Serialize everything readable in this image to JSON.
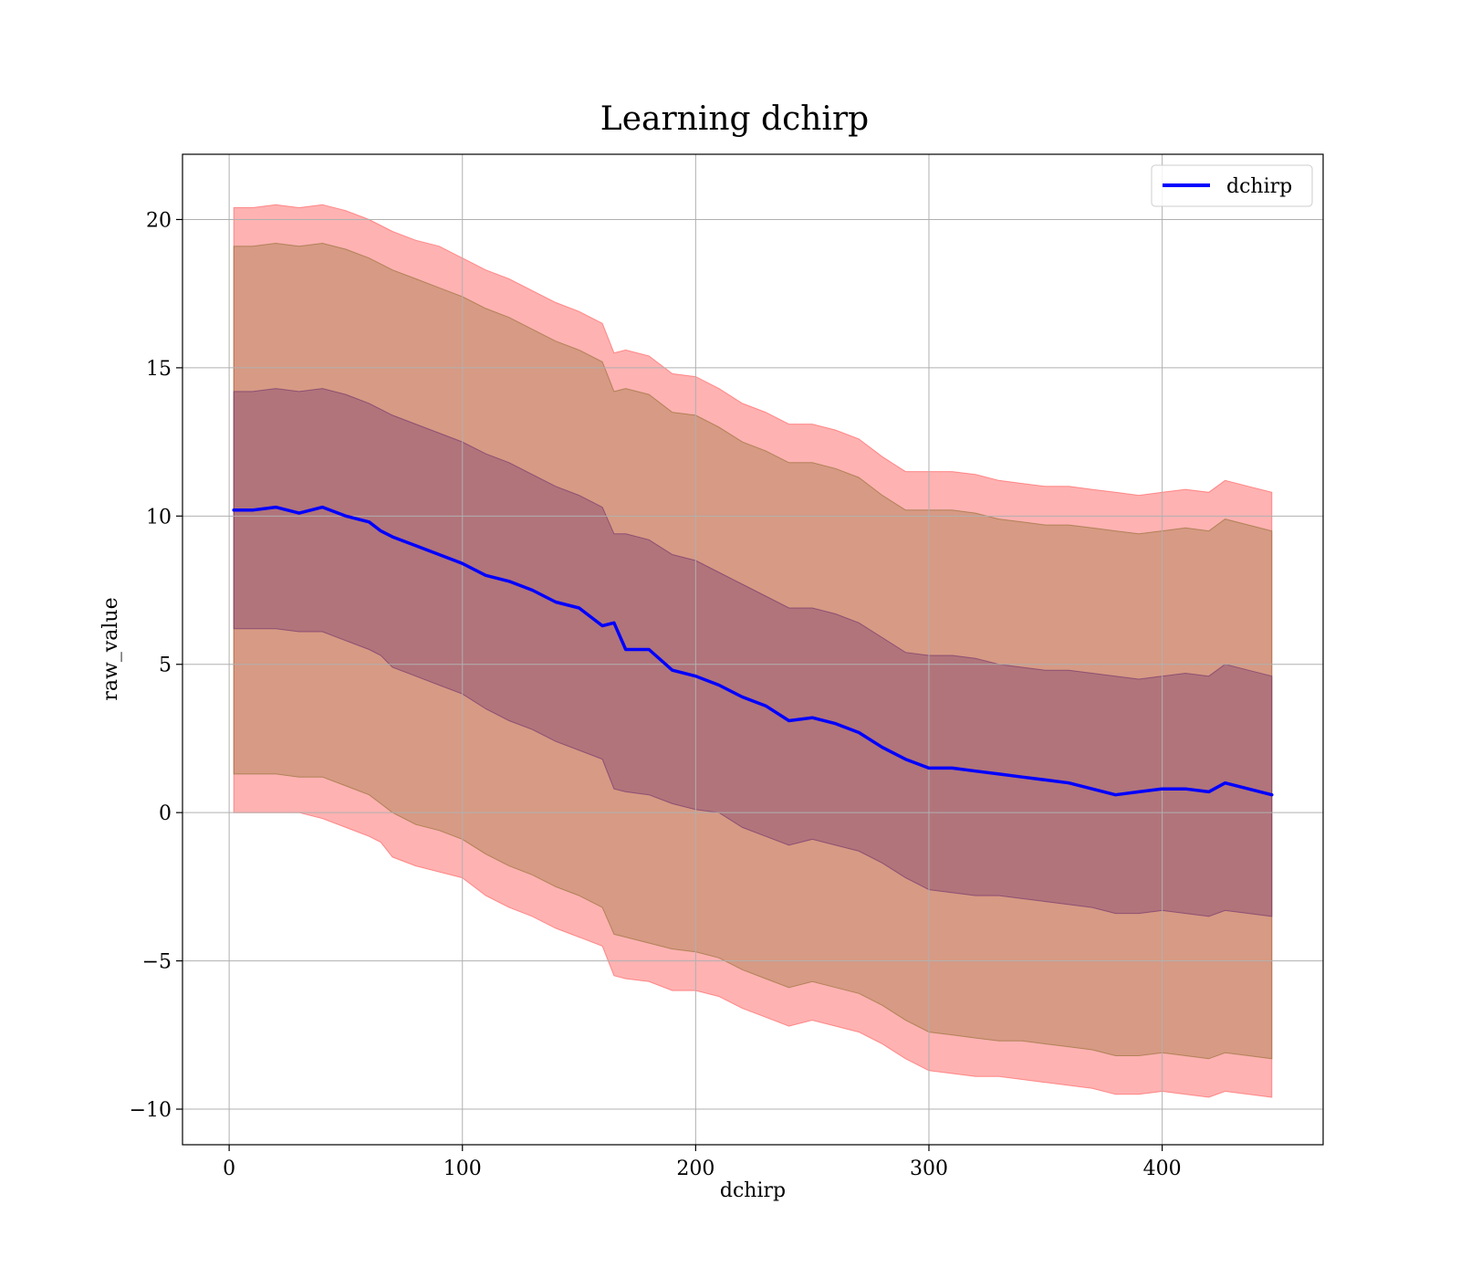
{
  "chart_data": {
    "type": "line",
    "title": "Learning dchirp",
    "xlabel": "dchirp",
    "ylabel": "raw_value",
    "xlim": [
      -20,
      469
    ],
    "ylim": [
      -11.2,
      22.2
    ],
    "xticks": [
      0,
      100,
      200,
      300,
      400
    ],
    "xtick_labels": [
      "0",
      "100",
      "200",
      "300",
      "400"
    ],
    "yticks": [
      -10,
      -5,
      0,
      5,
      10,
      15,
      20
    ],
    "ytick_labels": [
      "−10",
      "−5",
      "0",
      "5",
      "10",
      "15",
      "20"
    ],
    "grid": true,
    "legend_position": "top-right",
    "colors": {
      "line": "#0000ff",
      "band_outer": "#ff5555",
      "band_middle": "#8b6d2e",
      "band_inner": "#6b2d6b",
      "grid": "#b0b0b0"
    },
    "x": [
      2,
      10,
      20,
      30,
      40,
      50,
      60,
      65,
      70,
      80,
      90,
      100,
      110,
      120,
      130,
      140,
      150,
      160,
      165,
      170,
      180,
      190,
      200,
      210,
      220,
      230,
      240,
      250,
      260,
      270,
      280,
      290,
      300,
      310,
      320,
      330,
      340,
      350,
      360,
      370,
      380,
      390,
      400,
      410,
      420,
      427,
      437,
      447
    ],
    "series": [
      {
        "name": "dchirp",
        "values": [
          10.2,
          10.2,
          10.3,
          10.1,
          10.3,
          10.0,
          9.8,
          9.5,
          9.3,
          9.0,
          8.7,
          8.4,
          8.0,
          7.8,
          7.5,
          7.1,
          6.9,
          6.3,
          6.4,
          5.5,
          5.5,
          4.8,
          4.6,
          4.3,
          3.9,
          3.6,
          3.1,
          3.2,
          3.0,
          2.7,
          2.2,
          1.8,
          1.5,
          1.5,
          1.4,
          1.3,
          1.2,
          1.1,
          1.0,
          0.8,
          0.6,
          0.7,
          0.8,
          0.8,
          0.7,
          1.0,
          0.8,
          0.6
        ]
      }
    ],
    "bands": [
      {
        "level": "outer",
        "lower": [
          0.0,
          0.0,
          0.0,
          0.0,
          -0.2,
          -0.5,
          -0.8,
          -1.0,
          -1.5,
          -1.8,
          -2.0,
          -2.2,
          -2.8,
          -3.2,
          -3.5,
          -3.9,
          -4.2,
          -4.5,
          -5.5,
          -5.6,
          -5.7,
          -6.0,
          -6.0,
          -6.2,
          -6.6,
          -6.9,
          -7.2,
          -7.0,
          -7.2,
          -7.4,
          -7.8,
          -8.3,
          -8.7,
          -8.8,
          -8.9,
          -8.9,
          -9.0,
          -9.1,
          -9.2,
          -9.3,
          -9.5,
          -9.5,
          -9.4,
          -9.5,
          -9.6,
          -9.4,
          -9.5,
          -9.6
        ],
        "upper": [
          20.4,
          20.4,
          20.5,
          20.4,
          20.5,
          20.3,
          20.0,
          19.8,
          19.6,
          19.3,
          19.1,
          18.7,
          18.3,
          18.0,
          17.6,
          17.2,
          16.9,
          16.5,
          15.5,
          15.6,
          15.4,
          14.8,
          14.7,
          14.3,
          13.8,
          13.5,
          13.1,
          13.1,
          12.9,
          12.6,
          12.0,
          11.5,
          11.5,
          11.5,
          11.4,
          11.2,
          11.1,
          11.0,
          11.0,
          10.9,
          10.8,
          10.7,
          10.8,
          10.9,
          10.8,
          11.2,
          11.0,
          10.8
        ]
      },
      {
        "level": "middle",
        "lower": [
          1.3,
          1.3,
          1.3,
          1.2,
          1.2,
          0.9,
          0.6,
          0.3,
          0.0,
          -0.4,
          -0.6,
          -0.9,
          -1.4,
          -1.8,
          -2.1,
          -2.5,
          -2.8,
          -3.2,
          -4.1,
          -4.2,
          -4.4,
          -4.6,
          -4.7,
          -4.9,
          -5.3,
          -5.6,
          -5.9,
          -5.7,
          -5.9,
          -6.1,
          -6.5,
          -7.0,
          -7.4,
          -7.5,
          -7.6,
          -7.7,
          -7.7,
          -7.8,
          -7.9,
          -8.0,
          -8.2,
          -8.2,
          -8.1,
          -8.2,
          -8.3,
          -8.1,
          -8.2,
          -8.3
        ],
        "upper": [
          19.1,
          19.1,
          19.2,
          19.1,
          19.2,
          19.0,
          18.7,
          18.5,
          18.3,
          18.0,
          17.7,
          17.4,
          17.0,
          16.7,
          16.3,
          15.9,
          15.6,
          15.2,
          14.2,
          14.3,
          14.1,
          13.5,
          13.4,
          13.0,
          12.5,
          12.2,
          11.8,
          11.8,
          11.6,
          11.3,
          10.7,
          10.2,
          10.2,
          10.2,
          10.1,
          9.9,
          9.8,
          9.7,
          9.7,
          9.6,
          9.5,
          9.4,
          9.5,
          9.6,
          9.5,
          9.9,
          9.7,
          9.5
        ]
      },
      {
        "level": "inner",
        "lower": [
          6.2,
          6.2,
          6.2,
          6.1,
          6.1,
          5.8,
          5.5,
          5.3,
          4.9,
          4.6,
          4.3,
          4.0,
          3.5,
          3.1,
          2.8,
          2.4,
          2.1,
          1.8,
          0.8,
          0.7,
          0.6,
          0.3,
          0.1,
          0.0,
          -0.5,
          -0.8,
          -1.1,
          -0.9,
          -1.1,
          -1.3,
          -1.7,
          -2.2,
          -2.6,
          -2.7,
          -2.8,
          -2.8,
          -2.9,
          -3.0,
          -3.1,
          -3.2,
          -3.4,
          -3.4,
          -3.3,
          -3.4,
          -3.5,
          -3.3,
          -3.4,
          -3.5
        ],
        "upper": [
          14.2,
          14.2,
          14.3,
          14.2,
          14.3,
          14.1,
          13.8,
          13.6,
          13.4,
          13.1,
          12.8,
          12.5,
          12.1,
          11.8,
          11.4,
          11.0,
          10.7,
          10.3,
          9.4,
          9.4,
          9.2,
          8.7,
          8.5,
          8.1,
          7.7,
          7.3,
          6.9,
          6.9,
          6.7,
          6.4,
          5.9,
          5.4,
          5.3,
          5.3,
          5.2,
          5.0,
          4.9,
          4.8,
          4.8,
          4.7,
          4.6,
          4.5,
          4.6,
          4.7,
          4.6,
          5.0,
          4.8,
          4.6
        ]
      }
    ]
  }
}
